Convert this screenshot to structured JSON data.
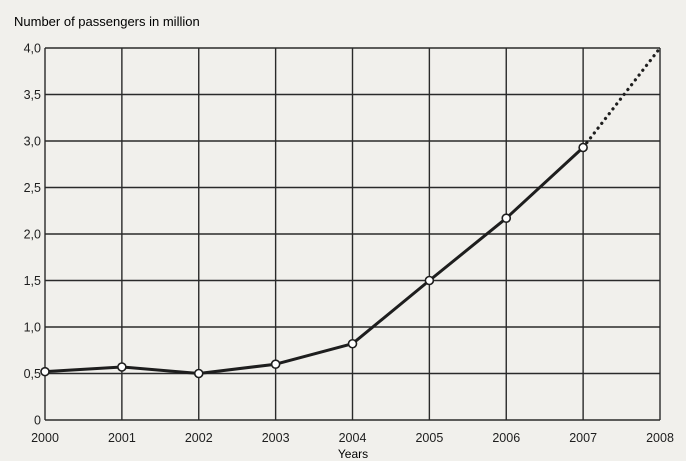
{
  "chart_data": {
    "type": "line",
    "title": "",
    "ylabel": "Number of passengers in million",
    "xlabel": "Years",
    "x": [
      "2000",
      "2001",
      "2002",
      "2003",
      "2004",
      "2005",
      "2006",
      "2007",
      "2008"
    ],
    "y_tick_labels": [
      "0",
      "0,5",
      "1,0",
      "1,5",
      "2,0",
      "2,5",
      "3,0",
      "3,5",
      "4,0"
    ],
    "ylim": [
      0,
      4.0
    ],
    "grid": true,
    "series": [
      {
        "style": "solid-with-markers",
        "x": [
          "2000",
          "2001",
          "2002",
          "2003",
          "2004",
          "2005",
          "2006",
          "2007"
        ],
        "values": [
          0.52,
          0.57,
          0.5,
          0.6,
          0.82,
          1.5,
          2.17,
          2.93
        ]
      },
      {
        "style": "dotted-projection",
        "x": [
          "2007",
          "2008"
        ],
        "values": [
          2.93,
          4.0
        ]
      }
    ],
    "colors": {
      "line": "#1e1e1e",
      "grid": "#2a2a2a",
      "background": "#f1f0ec",
      "marker_fill": "#ffffff"
    }
  }
}
